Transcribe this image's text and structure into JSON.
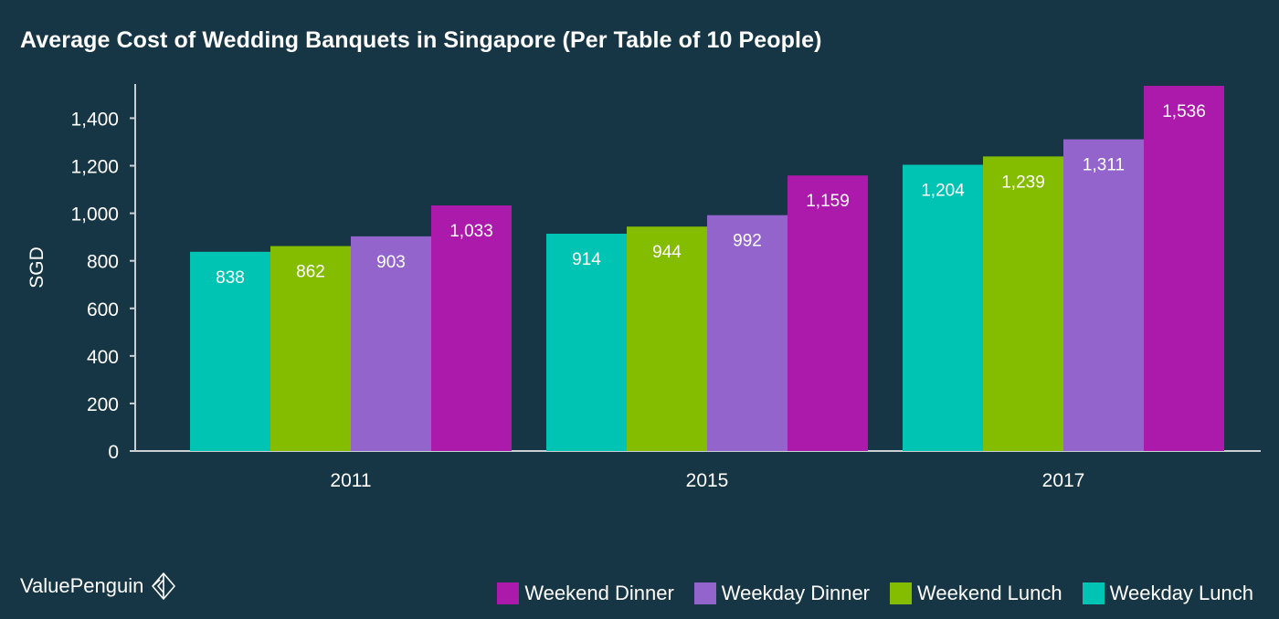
{
  "chart_data": {
    "type": "bar",
    "title": "Average Cost of Wedding Banquets in Singapore (Per Table of 10 People)",
    "xlabel": "",
    "ylabel": "SGD",
    "ylim": [
      0,
      1540
    ],
    "yticks": [
      0,
      200,
      400,
      600,
      800,
      1000,
      1200,
      1400
    ],
    "ytick_labels": [
      "0",
      "200",
      "400",
      "600",
      "800",
      "1,000",
      "1,200",
      "1,400"
    ],
    "categories": [
      "2011",
      "2015",
      "2017"
    ],
    "series": [
      {
        "name": "Weekday Lunch",
        "color": "#00c4b3",
        "values": [
          838,
          914,
          1204
        ],
        "labels": [
          "838",
          "914",
          "1,204"
        ]
      },
      {
        "name": "Weekend Lunch",
        "color": "#84bd00",
        "values": [
          862,
          944,
          1239
        ],
        "labels": [
          "862",
          "944",
          "1,239"
        ]
      },
      {
        "name": "Weekday Dinner",
        "color": "#9365cc",
        "values": [
          903,
          992,
          1311
        ],
        "labels": [
          "903",
          "992",
          "1,311"
        ]
      },
      {
        "name": "Weekend Dinner",
        "color": "#ab1aab",
        "values": [
          1033,
          1159,
          1536
        ],
        "labels": [
          "1,033",
          "1,159",
          "1,536"
        ]
      }
    ],
    "legend_order": [
      "Weekend Dinner",
      "Weekday Dinner",
      "Weekend Lunch",
      "Weekday Lunch"
    ],
    "legend_position": "bottom-right",
    "grid": false
  },
  "brand": {
    "name": "ValuePenguin",
    "icon": "valuepenguin-logo-icon"
  },
  "colors": {
    "background": "#173645",
    "text": "#ffffff",
    "axis": "#c8d0d4"
  }
}
